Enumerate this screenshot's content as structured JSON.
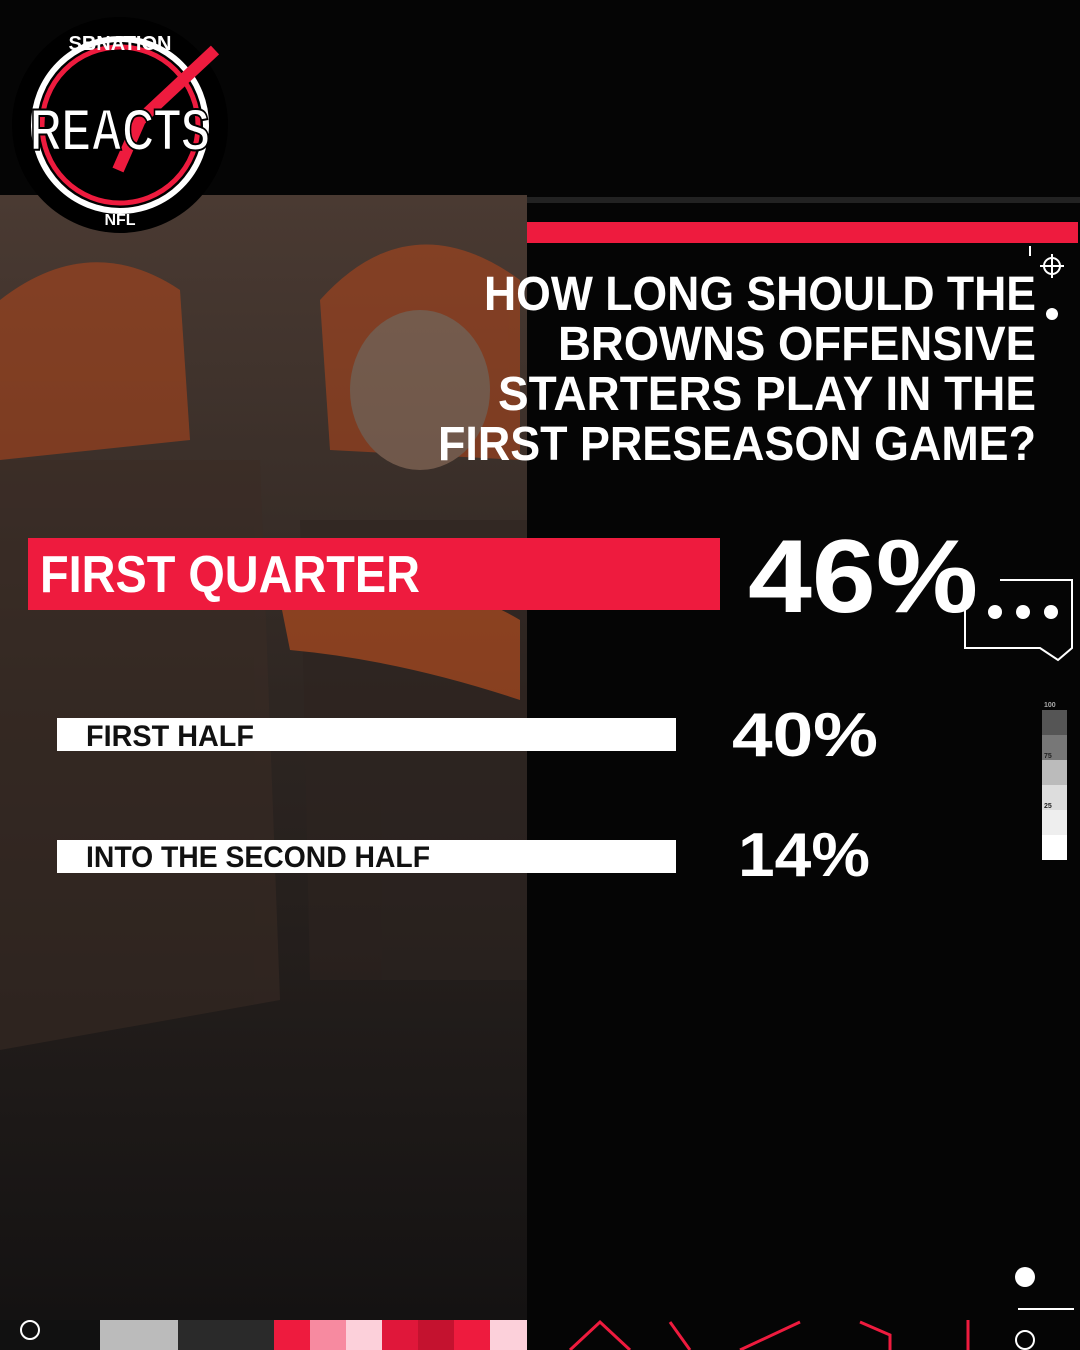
{
  "logo": {
    "top": "SBNATION",
    "main": "REACTS",
    "bottom": "NFL"
  },
  "question": [
    "HOW LONG SHOULD THE",
    "BROWNS OFFENSIVE",
    "STARTERS PLAY IN THE",
    "FIRST PRESEASON GAME?"
  ],
  "options": [
    {
      "label": "FIRST QUARTER",
      "percent": "46%"
    },
    {
      "label": "FIRST HALF",
      "percent": "40%"
    },
    {
      "label": "INTO THE SECOND HALF",
      "percent": "14%"
    }
  ],
  "gauge_labels": [
    "100",
    "75",
    "25"
  ]
}
